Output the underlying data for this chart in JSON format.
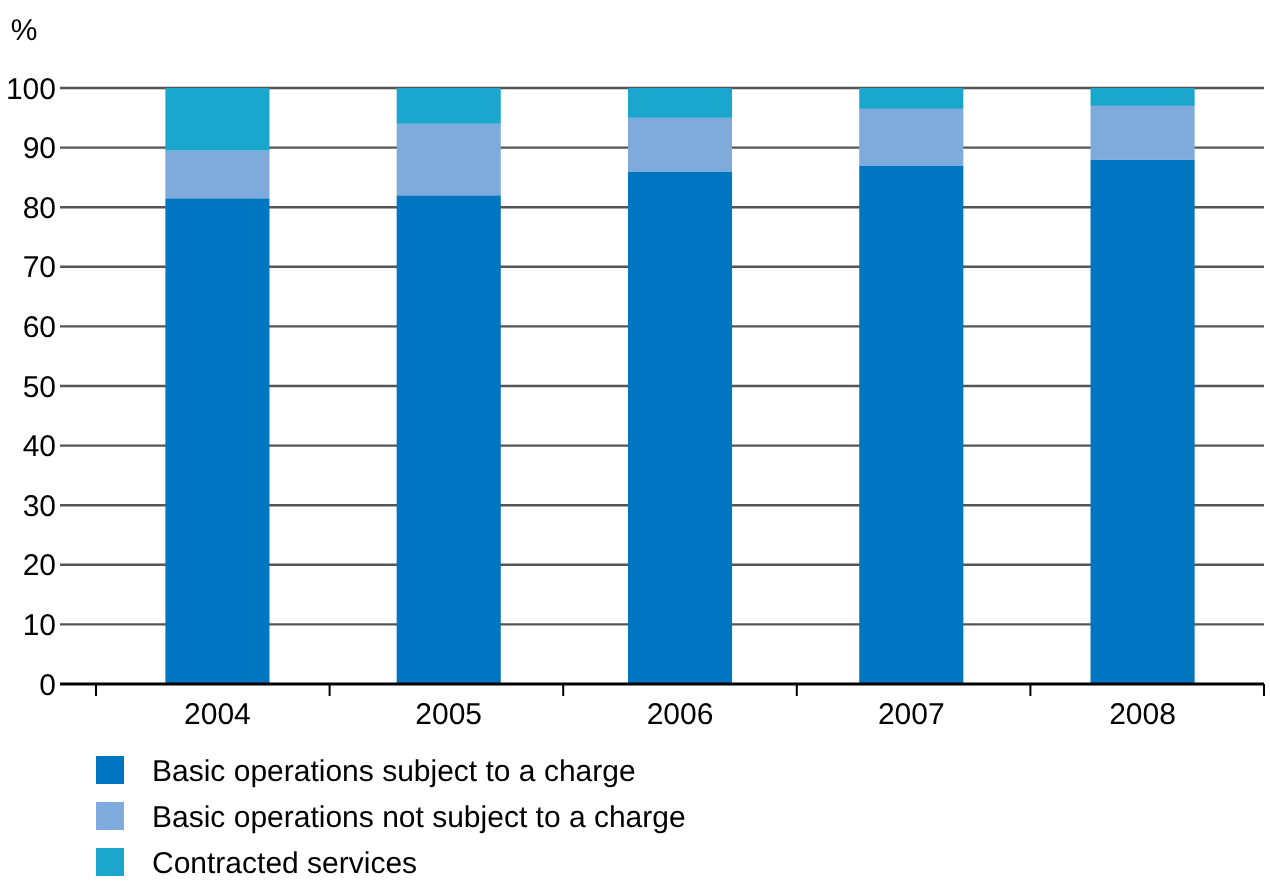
{
  "chart_data": {
    "type": "bar",
    "ylabel": "%",
    "categories": [
      "2004",
      "2005",
      "2006",
      "2007",
      "2008"
    ],
    "stacked": true,
    "series": [
      {
        "name": "Basic operations subject to a charge",
        "color": "#0075c0",
        "values": [
          81.5,
          82,
          86,
          87,
          88
        ]
      },
      {
        "name": "Basic operations not subject to a charge",
        "color": "#7eaadc",
        "values": [
          8,
          12,
          9,
          9.5,
          9
        ]
      },
      {
        "name": "Contracted services",
        "color": "#1ba6cd",
        "values": [
          10.5,
          6,
          5,
          3.5,
          3
        ]
      }
    ],
    "ylim": [
      0,
      100
    ],
    "yticks": [
      0,
      10,
      20,
      30,
      40,
      50,
      60,
      70,
      80,
      90,
      100
    ],
    "grid": "y",
    "legend": "bottom"
  }
}
